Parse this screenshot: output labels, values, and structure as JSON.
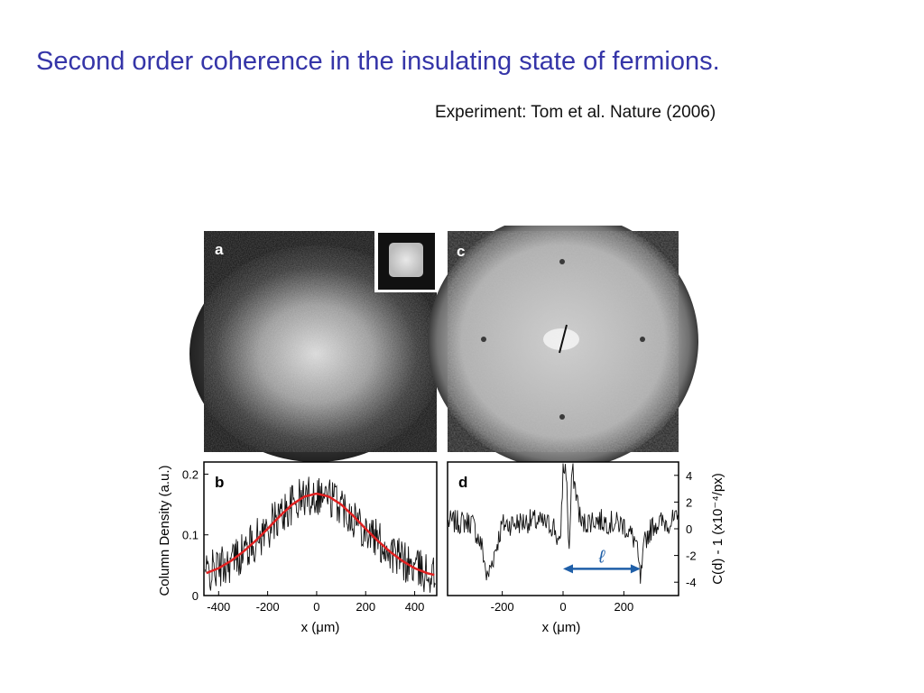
{
  "slide": {
    "title": "Second order coherence in the insulating state of fermions.",
    "subtitle": "Experiment: Tom et al. Nature (2006)"
  },
  "figure": {
    "panel_a": {
      "label": "a"
    },
    "panel_c": {
      "label": "c"
    },
    "panel_b": {
      "label": "b",
      "ylabel": "Column Density (a.u.)",
      "xlabel": "x (μm)",
      "xticks": [
        "-400",
        "-200",
        "0",
        "200",
        "400"
      ],
      "yticks": [
        "0",
        "0.1",
        "0.2"
      ]
    },
    "panel_d": {
      "label": "d",
      "ylabel": "C(d) - 1  (x10⁻⁴/px)",
      "xlabel": "x (μm)",
      "xticks": [
        "-200",
        "0",
        "200"
      ],
      "yticks": [
        "4",
        "2",
        "0",
        "-2",
        "-4"
      ],
      "arrow_label": "ℓ"
    }
  },
  "colors": {
    "title": "#3535a8",
    "fit_curve": "#e02020",
    "arrow": "#1f5fa8"
  },
  "chart_data": [
    {
      "type": "line",
      "panel": "b",
      "xlabel": "x (μm)",
      "ylabel": "Column Density (a.u.)",
      "xlim": [
        -460,
        490
      ],
      "ylim": [
        0,
        0.22
      ],
      "series": [
        {
          "x": [
            -450,
            -400,
            -350,
            -300,
            -250,
            -200,
            -150,
            -100,
            -50,
            0,
            50,
            100,
            150,
            200,
            250,
            300,
            350,
            400,
            450,
            480
          ],
          "y": [
            0.037,
            0.045,
            0.057,
            0.072,
            0.09,
            0.11,
            0.131,
            0.15,
            0.163,
            0.168,
            0.163,
            0.15,
            0.131,
            0.11,
            0.09,
            0.072,
            0.057,
            0.045,
            0.037,
            0.034
          ]
        }
      ]
    },
    {
      "type": "line",
      "panel": "d",
      "xlabel": "x (μm)",
      "ylabel": "C(d) - 1  (x10⁻⁴/px)",
      "xlim": [
        -380,
        380
      ],
      "ylim": [
        -5,
        5
      ],
      "series": [
        {
          "x": [
            -380,
            -300,
            -265,
            -250,
            -200,
            -100,
            -30,
            -10,
            0,
            10,
            20,
            30,
            60,
            100,
            200,
            240,
            255,
            270,
            300,
            380
          ],
          "y": [
            0.5,
            0.5,
            -1.5,
            -3.8,
            0.3,
            0.6,
            0.2,
            -1.5,
            4.5,
            4.5,
            -1.8,
            4.5,
            0.3,
            0.7,
            0.3,
            -1.0,
            -3.9,
            -0.8,
            0.4,
            0.6
          ]
        }
      ]
    }
  ]
}
